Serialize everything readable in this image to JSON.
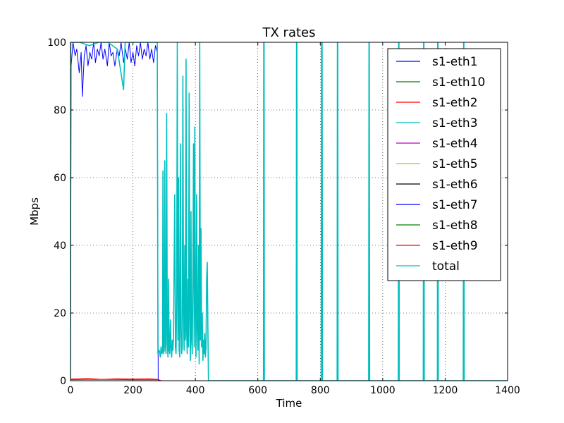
{
  "chart_data": {
    "type": "line",
    "title": "TX rates",
    "xlabel": "Time",
    "ylabel": "Mbps",
    "xlim": [
      0,
      1400
    ],
    "ylim": [
      0,
      100
    ],
    "xticks": [
      0,
      200,
      400,
      600,
      800,
      1000,
      1200,
      1400
    ],
    "yticks": [
      0,
      20,
      40,
      60,
      80,
      100
    ],
    "grid": true,
    "legend_position": "top-right",
    "series": [
      {
        "name": "s1-eth1",
        "color": "#0000ff",
        "points": [
          [
            0,
            0
          ],
          [
            1400,
            0
          ]
        ]
      },
      {
        "name": "s1-eth10",
        "color": "#008000",
        "points": [
          [
            0,
            0
          ],
          [
            1400,
            0
          ]
        ]
      },
      {
        "name": "s1-eth2",
        "color": "#ff0000",
        "points": [
          [
            0,
            0.5
          ],
          [
            50,
            0.7
          ],
          [
            100,
            0.4
          ],
          [
            150,
            0.6
          ],
          [
            200,
            0.5
          ],
          [
            250,
            0.6
          ],
          [
            280,
            0.4
          ],
          [
            290,
            0
          ],
          [
            1400,
            0
          ]
        ]
      },
      {
        "name": "s1-eth3",
        "color": "#00bfbf",
        "points": [
          [
            0,
            0
          ],
          [
            1400,
            0
          ]
        ]
      },
      {
        "name": "s1-eth4",
        "color": "#bf00bf",
        "points": [
          [
            0,
            0
          ],
          [
            1400,
            0
          ]
        ]
      },
      {
        "name": "s1-eth5",
        "color": "#bfbf00",
        "points": [
          [
            0,
            0
          ],
          [
            1400,
            0
          ]
        ]
      },
      {
        "name": "s1-eth6",
        "color": "#000000",
        "points": [
          [
            0,
            0
          ],
          [
            1400,
            0
          ]
        ]
      },
      {
        "name": "s1-eth7",
        "color": "#0000ff",
        "points": [
          [
            0,
            0
          ],
          [
            2,
            93
          ],
          [
            8,
            100
          ],
          [
            15,
            96
          ],
          [
            20,
            98
          ],
          [
            28,
            91
          ],
          [
            34,
            97
          ],
          [
            38,
            84
          ],
          [
            44,
            96
          ],
          [
            50,
            99
          ],
          [
            56,
            93
          ],
          [
            62,
            97
          ],
          [
            68,
            95
          ],
          [
            74,
            100
          ],
          [
            80,
            94
          ],
          [
            86,
            98
          ],
          [
            92,
            96
          ],
          [
            98,
            100
          ],
          [
            104,
            95
          ],
          [
            110,
            98
          ],
          [
            118,
            93
          ],
          [
            124,
            100
          ],
          [
            130,
            96
          ],
          [
            136,
            97
          ],
          [
            142,
            93
          ],
          [
            150,
            98
          ],
          [
            156,
            96
          ],
          [
            162,
            100
          ],
          [
            170,
            94
          ],
          [
            176,
            98
          ],
          [
            182,
            95
          ],
          [
            188,
            100
          ],
          [
            194,
            94
          ],
          [
            200,
            97
          ],
          [
            206,
            93
          ],
          [
            212,
            99
          ],
          [
            218,
            96
          ],
          [
            224,
            100
          ],
          [
            230,
            95
          ],
          [
            236,
            98
          ],
          [
            242,
            96
          ],
          [
            248,
            100
          ],
          [
            254,
            95
          ],
          [
            260,
            98
          ],
          [
            266,
            94
          ],
          [
            272,
            99
          ],
          [
            278,
            97
          ],
          [
            281,
            0
          ],
          [
            1400,
            0
          ]
        ]
      },
      {
        "name": "s1-eth8",
        "color": "#008000",
        "points": [
          [
            0,
            0
          ],
          [
            1400,
            0
          ]
        ]
      },
      {
        "name": "s1-eth9",
        "color": "#ff0000",
        "points": [
          [
            0,
            0.3
          ],
          [
            100,
            0.4
          ],
          [
            200,
            0.3
          ],
          [
            280,
            0.3
          ],
          [
            290,
            0
          ],
          [
            1400,
            0
          ]
        ]
      },
      {
        "name": "total",
        "color": "#00bfbf",
        "points": [
          [
            0,
            0
          ],
          [
            1,
            100
          ],
          [
            30,
            100
          ],
          [
            60,
            99
          ],
          [
            90,
            100
          ],
          [
            120,
            100
          ],
          [
            150,
            98
          ],
          [
            170,
            86
          ],
          [
            175,
            100
          ],
          [
            200,
            100
          ],
          [
            230,
            100
          ],
          [
            260,
            100
          ],
          [
            278,
            100
          ],
          [
            280,
            8
          ],
          [
            284,
            9
          ],
          [
            288,
            7
          ],
          [
            290,
            10
          ],
          [
            293,
            8
          ],
          [
            295,
            9
          ],
          [
            296,
            62
          ],
          [
            298,
            8
          ],
          [
            300,
            9
          ],
          [
            302,
            65
          ],
          [
            304,
            10
          ],
          [
            306,
            8
          ],
          [
            308,
            79
          ],
          [
            310,
            12
          ],
          [
            312,
            7
          ],
          [
            314,
            30
          ],
          [
            316,
            9
          ],
          [
            318,
            8
          ],
          [
            320,
            18
          ],
          [
            322,
            10
          ],
          [
            324,
            7
          ],
          [
            326,
            12
          ],
          [
            328,
            9
          ],
          [
            330,
            13
          ],
          [
            332,
            35
          ],
          [
            334,
            55
          ],
          [
            336,
            10
          ],
          [
            338,
            8
          ],
          [
            340,
            25
          ],
          [
            342,
            100
          ],
          [
            344,
            12
          ],
          [
            346,
            60
          ],
          [
            348,
            9
          ],
          [
            350,
            7
          ],
          [
            352,
            70
          ],
          [
            354,
            15
          ],
          [
            356,
            8
          ],
          [
            358,
            10
          ],
          [
            360,
            90
          ],
          [
            362,
            20
          ],
          [
            364,
            9
          ],
          [
            366,
            40
          ],
          [
            368,
            12
          ],
          [
            370,
            95
          ],
          [
            372,
            15
          ],
          [
            374,
            8
          ],
          [
            376,
            30
          ],
          [
            378,
            10
          ],
          [
            380,
            85
          ],
          [
            382,
            18
          ],
          [
            384,
            6
          ],
          [
            386,
            50
          ],
          [
            388,
            12
          ],
          [
            390,
            8
          ],
          [
            392,
            30
          ],
          [
            394,
            70
          ],
          [
            396,
            10
          ],
          [
            398,
            75
          ],
          [
            400,
            20
          ],
          [
            402,
            7
          ],
          [
            404,
            55
          ],
          [
            406,
            15
          ],
          [
            408,
            9
          ],
          [
            410,
            40
          ],
          [
            412,
            5
          ],
          [
            414,
            100
          ],
          [
            416,
            12
          ],
          [
            418,
            45
          ],
          [
            420,
            10
          ],
          [
            422,
            20
          ],
          [
            424,
            6
          ],
          [
            426,
            12
          ],
          [
            428,
            8
          ],
          [
            430,
            14
          ],
          [
            432,
            7
          ],
          [
            434,
            10
          ],
          [
            436,
            30
          ],
          [
            438,
            35
          ],
          [
            440,
            15
          ],
          [
            442,
            0
          ],
          [
            618,
            0
          ],
          [
            619,
            100
          ],
          [
            620,
            100
          ],
          [
            621,
            0
          ],
          [
            723,
            0
          ],
          [
            724,
            100
          ],
          [
            725,
            100
          ],
          [
            726,
            0
          ],
          [
            803,
            0
          ],
          [
            804,
            100
          ],
          [
            806,
            100
          ],
          [
            807,
            0
          ],
          [
            854,
            0
          ],
          [
            855,
            100
          ],
          [
            856,
            100
          ],
          [
            857,
            0
          ],
          [
            955,
            0
          ],
          [
            956,
            100
          ],
          [
            957,
            100
          ],
          [
            958,
            0
          ],
          [
            1050,
            0
          ],
          [
            1051,
            100
          ],
          [
            1052,
            100
          ],
          [
            1053,
            0
          ],
          [
            1130,
            0
          ],
          [
            1131,
            100
          ],
          [
            1132,
            100
          ],
          [
            1133,
            0
          ],
          [
            1175,
            0
          ],
          [
            1176,
            100
          ],
          [
            1177,
            100
          ],
          [
            1178,
            0
          ],
          [
            1258,
            0
          ],
          [
            1259,
            100
          ],
          [
            1260,
            100
          ],
          [
            1261,
            0
          ],
          [
            1400,
            0
          ]
        ]
      }
    ]
  }
}
